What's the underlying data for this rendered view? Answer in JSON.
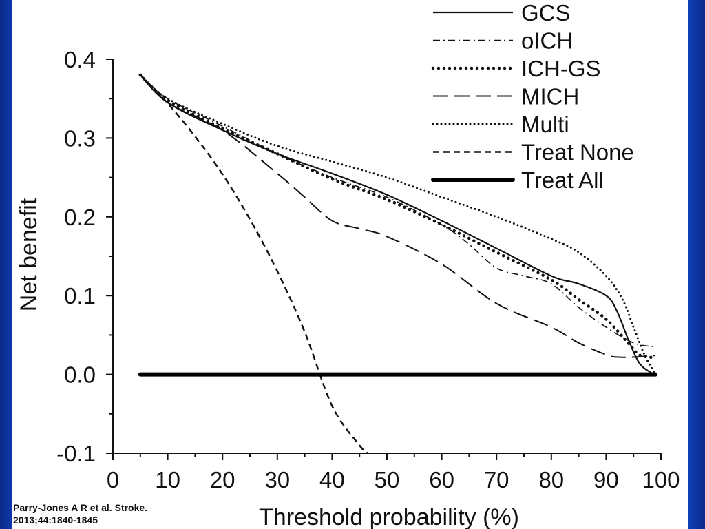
{
  "chart_data": {
    "type": "line",
    "xlabel": "Threshold probability (%)",
    "ylabel": "Net benefit",
    "xlim": [
      0,
      100
    ],
    "ylim": [
      -0.1,
      0.4
    ],
    "x_ticks": [
      0,
      10,
      20,
      30,
      40,
      50,
      60,
      70,
      80,
      90,
      100
    ],
    "y_ticks": [
      -0.1,
      0.0,
      0.1,
      0.2,
      0.3,
      0.4
    ],
    "x_tick_labels": [
      "0",
      "10",
      "20",
      "30",
      "40",
      "50",
      "60",
      "70",
      "80",
      "90",
      "100"
    ],
    "y_tick_labels": [
      "-0.1",
      "0.0",
      "0.1",
      "0.2",
      "0.3",
      "0.4"
    ],
    "legend_position": "top-right",
    "series": [
      {
        "name": "GCS",
        "style": "solid",
        "color": "#111111",
        "x": [
          5,
          10,
          20,
          30,
          40,
          50,
          60,
          70,
          80,
          85,
          90,
          92,
          94,
          96,
          98,
          99
        ],
        "y": [
          0.38,
          0.345,
          0.31,
          0.28,
          0.255,
          0.228,
          0.195,
          0.16,
          0.125,
          0.115,
          0.1,
          0.08,
          0.045,
          0.015,
          0.003,
          0.0
        ]
      },
      {
        "name": "oICH",
        "style": "dashdot",
        "color": "#111111",
        "x": [
          5,
          10,
          20,
          30,
          40,
          50,
          60,
          65,
          70,
          75,
          80,
          85,
          90,
          95,
          99
        ],
        "y": [
          0.38,
          0.35,
          0.315,
          0.28,
          0.25,
          0.225,
          0.19,
          0.165,
          0.135,
          0.125,
          0.115,
          0.085,
          0.06,
          0.04,
          0.035
        ]
      },
      {
        "name": "ICH-GS",
        "style": "bold-dotted",
        "color": "#111111",
        "x": [
          5,
          10,
          20,
          30,
          40,
          50,
          60,
          70,
          80,
          85,
          90,
          94,
          96,
          98,
          99
        ],
        "y": [
          0.38,
          0.348,
          0.312,
          0.28,
          0.248,
          0.222,
          0.19,
          0.155,
          0.12,
          0.095,
          0.07,
          0.04,
          0.025,
          0.022,
          0.02
        ]
      },
      {
        "name": "MICH",
        "style": "longdash",
        "color": "#111111",
        "x": [
          5,
          10,
          20,
          30,
          35,
          40,
          45,
          50,
          60,
          70,
          80,
          85,
          90,
          92,
          95,
          99
        ],
        "y": [
          0.38,
          0.345,
          0.31,
          0.255,
          0.225,
          0.195,
          0.185,
          0.175,
          0.14,
          0.09,
          0.06,
          0.04,
          0.025,
          0.022,
          0.022,
          0.024
        ]
      },
      {
        "name": "Multi",
        "style": "dotted",
        "color": "#111111",
        "x": [
          5,
          10,
          20,
          30,
          40,
          50,
          60,
          70,
          80,
          85,
          90,
          93,
          95,
          97,
          99
        ],
        "y": [
          0.38,
          0.35,
          0.318,
          0.29,
          0.27,
          0.25,
          0.225,
          0.2,
          0.172,
          0.155,
          0.125,
          0.095,
          0.06,
          0.025,
          0.0
        ]
      },
      {
        "name": "Treat None",
        "style": "shortdash",
        "color": "#111111",
        "x": [
          5,
          10,
          15,
          20,
          25,
          30,
          35,
          40,
          45,
          46.5
        ],
        "y": [
          0.38,
          0.344,
          0.302,
          0.254,
          0.197,
          0.131,
          0.054,
          -0.04,
          -0.09,
          -0.1
        ]
      },
      {
        "name": "Treat All",
        "style": "thick",
        "color": "#000000",
        "x": [
          5,
          99
        ],
        "y": [
          0.0,
          0.0
        ]
      }
    ]
  },
  "citation": {
    "line1": "Parry-Jones A R et al. Stroke.",
    "line2": "2013;44:1840-1845"
  }
}
